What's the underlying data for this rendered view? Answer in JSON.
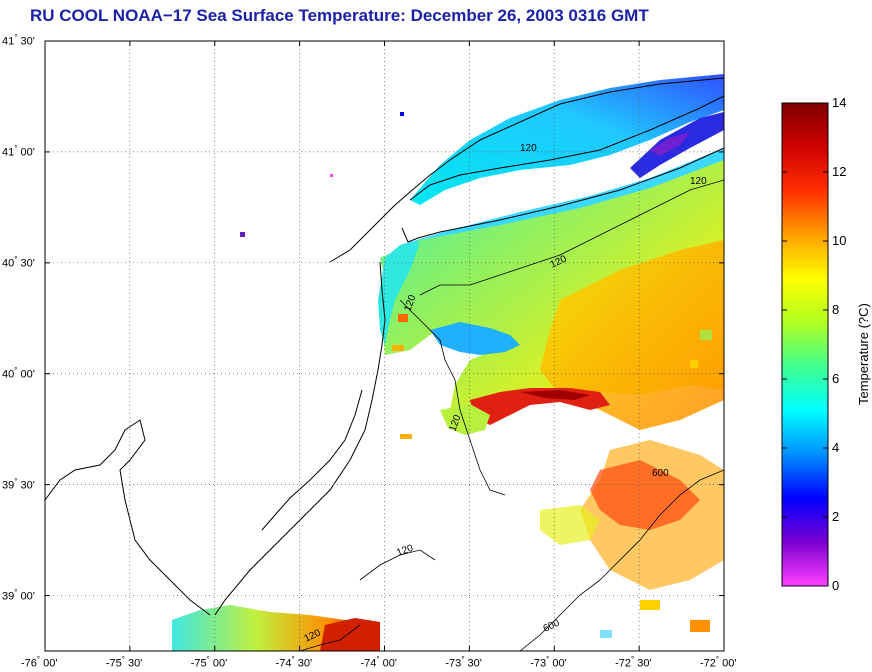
{
  "title": "RU COOL  NOAA−17  Sea Surface Temperature:  December 26, 2003 0316 GMT",
  "map": {
    "lon_range": [
      -76.0,
      -72.0
    ],
    "lat_range": [
      38.75,
      41.5
    ],
    "grid": "dotted",
    "lat_ticks": [
      {
        "value": 41.5,
        "deg": "41",
        "min": "30'"
      },
      {
        "value": 41.0,
        "deg": "41",
        "min": "00'"
      },
      {
        "value": 40.5,
        "deg": "40",
        "min": "30'"
      },
      {
        "value": 40.0,
        "deg": "40",
        "min": "00'"
      },
      {
        "value": 39.5,
        "deg": "39",
        "min": "30'"
      },
      {
        "value": 39.0,
        "deg": "39",
        "min": "00'"
      }
    ],
    "lon_ticks": [
      {
        "value": -76.0,
        "deg": "-76",
        "min": "00'"
      },
      {
        "value": -75.5,
        "deg": "-75",
        "min": "30'"
      },
      {
        "value": -75.0,
        "deg": "-75",
        "min": "00'"
      },
      {
        "value": -74.5,
        "deg": "-74",
        "min": "30'"
      },
      {
        "value": -74.0,
        "deg": "-74",
        "min": "00'"
      },
      {
        "value": -73.5,
        "deg": "-73",
        "min": "30'"
      },
      {
        "value": -73.0,
        "deg": "-73",
        "min": "00'"
      },
      {
        "value": -72.5,
        "deg": "-72",
        "min": "30'"
      },
      {
        "value": -72.0,
        "deg": "-72",
        "min": "00'"
      }
    ],
    "contour_labels": [
      "120",
      "120",
      "120",
      "120",
      "120",
      "120",
      "120",
      "600",
      "600"
    ]
  },
  "colorbar": {
    "label": "Temperature (?C)",
    "range": [
      0,
      14
    ],
    "ticks": [
      "0",
      "2",
      "4",
      "6",
      "8",
      "10",
      "12",
      "14"
    ],
    "colors": [
      "#ff40ff",
      "#7a00d0",
      "#0000ff",
      "#0090ff",
      "#00ffff",
      "#40ff90",
      "#b0ff20",
      "#ffff00",
      "#ffa000",
      "#ff3000",
      "#d00000",
      "#800000"
    ]
  }
}
